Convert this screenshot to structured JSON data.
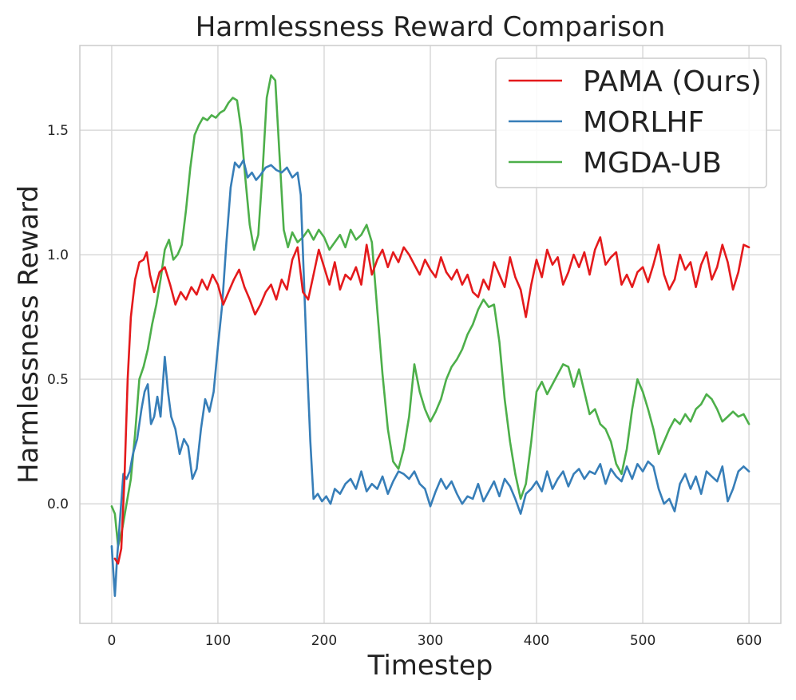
{
  "chart_data": {
    "type": "line",
    "title": "Harmlessness Reward Comparison",
    "xlabel": "Timestep",
    "ylabel": "Harmlessness Reward",
    "xlim": [
      -30,
      630
    ],
    "ylim": [
      -0.48,
      1.84
    ],
    "xticks": [
      0,
      100,
      200,
      300,
      400,
      500,
      600
    ],
    "yticks": [
      0.0,
      0.5,
      1.0,
      1.5
    ],
    "xtick_labels": [
      "0",
      "100",
      "200",
      "300",
      "400",
      "500",
      "600"
    ],
    "ytick_labels": [
      "0.0",
      "0.5",
      "1.0",
      "1.5"
    ],
    "grid": true,
    "legend_position": "top-right",
    "series": [
      {
        "name": "PAMA (Ours)",
        "color": "#e41a1c",
        "x": [
          3,
          6,
          9,
          12,
          15,
          18,
          22,
          26,
          30,
          33,
          36,
          40,
          45,
          50,
          55,
          60,
          65,
          70,
          75,
          80,
          85,
          90,
          95,
          100,
          105,
          110,
          115,
          120,
          125,
          130,
          135,
          140,
          145,
          150,
          155,
          160,
          165,
          170,
          175,
          180,
          185,
          190,
          195,
          200,
          205,
          210,
          215,
          220,
          225,
          230,
          235,
          240,
          245,
          250,
          255,
          260,
          265,
          270,
          275,
          280,
          285,
          290,
          295,
          300,
          305,
          310,
          315,
          320,
          325,
          330,
          335,
          340,
          345,
          350,
          355,
          360,
          365,
          370,
          375,
          380,
          385,
          390,
          395,
          400,
          405,
          410,
          415,
          420,
          425,
          430,
          435,
          440,
          445,
          450,
          455,
          460,
          465,
          470,
          475,
          480,
          485,
          490,
          495,
          500,
          505,
          510,
          515,
          520,
          525,
          530,
          535,
          540,
          545,
          550,
          555,
          560,
          565,
          570,
          575,
          580,
          585,
          590,
          595,
          600
        ],
        "y": [
          -0.22,
          -0.24,
          -0.18,
          0.1,
          0.5,
          0.75,
          0.9,
          0.97,
          0.98,
          1.01,
          0.92,
          0.85,
          0.93,
          0.95,
          0.88,
          0.8,
          0.85,
          0.82,
          0.87,
          0.84,
          0.9,
          0.86,
          0.92,
          0.88,
          0.8,
          0.85,
          0.9,
          0.94,
          0.87,
          0.82,
          0.76,
          0.8,
          0.85,
          0.88,
          0.82,
          0.9,
          0.86,
          0.98,
          1.03,
          0.85,
          0.82,
          0.92,
          1.02,
          0.95,
          0.88,
          0.97,
          0.86,
          0.92,
          0.9,
          0.95,
          0.88,
          1.04,
          0.92,
          0.98,
          1.02,
          0.95,
          1.01,
          0.97,
          1.03,
          1.0,
          0.96,
          0.92,
          0.98,
          0.94,
          0.91,
          0.99,
          0.93,
          0.9,
          0.94,
          0.88,
          0.92,
          0.85,
          0.83,
          0.9,
          0.86,
          0.97,
          0.92,
          0.87,
          0.99,
          0.91,
          0.86,
          0.75,
          0.88,
          0.98,
          0.91,
          1.02,
          0.96,
          0.99,
          0.88,
          0.93,
          1.0,
          0.95,
          1.01,
          0.92,
          1.02,
          1.07,
          0.96,
          0.99,
          1.01,
          0.88,
          0.92,
          0.87,
          0.93,
          0.95,
          0.89,
          0.96,
          1.04,
          0.92,
          0.86,
          0.9,
          1.0,
          0.94,
          0.97,
          0.87,
          0.96,
          1.01,
          0.9,
          0.95,
          1.04,
          0.97,
          0.86,
          0.93,
          1.04,
          1.03
        ]
      },
      {
        "name": "MORLHF",
        "color": "#377eb8",
        "x": [
          0,
          3,
          5,
          8,
          11,
          14,
          17,
          20,
          24,
          28,
          31,
          34,
          37,
          40,
          43,
          46,
          50,
          53,
          56,
          60,
          64,
          68,
          72,
          76,
          80,
          84,
          88,
          92,
          96,
          100,
          104,
          108,
          112,
          116,
          120,
          124,
          128,
          132,
          136,
          140,
          145,
          150,
          155,
          160,
          165,
          170,
          175,
          178,
          181,
          184,
          187,
          190,
          194,
          198,
          202,
          206,
          210,
          215,
          220,
          225,
          230,
          235,
          240,
          245,
          250,
          255,
          260,
          265,
          270,
          275,
          280,
          285,
          290,
          295,
          300,
          305,
          310,
          315,
          320,
          325,
          330,
          335,
          340,
          345,
          350,
          355,
          360,
          365,
          370,
          375,
          380,
          385,
          390,
          395,
          400,
          405,
          410,
          415,
          420,
          425,
          430,
          435,
          440,
          445,
          450,
          455,
          460,
          465,
          470,
          475,
          480,
          485,
          490,
          495,
          500,
          505,
          510,
          515,
          520,
          525,
          530,
          535,
          540,
          545,
          550,
          555,
          560,
          565,
          570,
          575,
          580,
          585,
          590,
          595,
          600
        ],
        "y": [
          -0.17,
          -0.37,
          -0.22,
          -0.05,
          0.12,
          0.1,
          0.13,
          0.2,
          0.26,
          0.38,
          0.45,
          0.48,
          0.32,
          0.35,
          0.43,
          0.35,
          0.59,
          0.45,
          0.35,
          0.3,
          0.2,
          0.26,
          0.23,
          0.1,
          0.14,
          0.3,
          0.42,
          0.37,
          0.45,
          0.63,
          0.8,
          1.05,
          1.27,
          1.37,
          1.35,
          1.38,
          1.31,
          1.33,
          1.3,
          1.32,
          1.35,
          1.36,
          1.34,
          1.33,
          1.35,
          1.31,
          1.33,
          1.24,
          0.9,
          0.55,
          0.25,
          0.02,
          0.04,
          0.01,
          0.03,
          0.0,
          0.06,
          0.04,
          0.08,
          0.1,
          0.06,
          0.13,
          0.05,
          0.08,
          0.06,
          0.11,
          0.04,
          0.09,
          0.13,
          0.12,
          0.1,
          0.13,
          0.08,
          0.06,
          -0.01,
          0.05,
          0.1,
          0.06,
          0.09,
          0.04,
          0.0,
          0.03,
          0.02,
          0.08,
          0.01,
          0.05,
          0.09,
          0.03,
          0.1,
          0.07,
          0.02,
          -0.04,
          0.04,
          0.06,
          0.09,
          0.05,
          0.13,
          0.06,
          0.1,
          0.13,
          0.07,
          0.12,
          0.14,
          0.1,
          0.13,
          0.12,
          0.16,
          0.08,
          0.14,
          0.11,
          0.09,
          0.15,
          0.1,
          0.16,
          0.13,
          0.17,
          0.15,
          0.06,
          0.0,
          0.02,
          -0.03,
          0.08,
          0.12,
          0.06,
          0.11,
          0.04,
          0.13,
          0.11,
          0.09,
          0.15,
          0.01,
          0.06,
          0.13,
          0.15,
          0.13
        ]
      },
      {
        "name": "MGDA-UB",
        "color": "#4daf4a",
        "x": [
          0,
          3,
          6,
          10,
          14,
          18,
          22,
          26,
          30,
          34,
          38,
          42,
          46,
          50,
          54,
          58,
          62,
          66,
          70,
          74,
          78,
          82,
          86,
          90,
          94,
          98,
          102,
          106,
          110,
          114,
          118,
          122,
          126,
          130,
          134,
          138,
          142,
          146,
          150,
          154,
          158,
          162,
          166,
          170,
          175,
          180,
          185,
          190,
          195,
          200,
          205,
          210,
          215,
          220,
          225,
          230,
          235,
          240,
          245,
          250,
          255,
          260,
          265,
          270,
          275,
          280,
          285,
          290,
          295,
          300,
          305,
          310,
          315,
          320,
          325,
          330,
          335,
          340,
          345,
          350,
          355,
          360,
          365,
          370,
          375,
          380,
          385,
          390,
          395,
          400,
          405,
          410,
          415,
          420,
          425,
          430,
          435,
          440,
          445,
          450,
          455,
          460,
          465,
          470,
          475,
          480,
          485,
          490,
          495,
          500,
          505,
          510,
          515,
          520,
          525,
          530,
          535,
          540,
          545,
          550,
          555,
          560,
          565,
          570,
          575,
          580,
          585,
          590,
          595,
          600
        ],
        "y": [
          -0.01,
          -0.04,
          -0.17,
          -0.1,
          0.0,
          0.1,
          0.28,
          0.5,
          0.55,
          0.62,
          0.72,
          0.8,
          0.9,
          1.02,
          1.06,
          0.98,
          1.0,
          1.04,
          1.18,
          1.35,
          1.48,
          1.52,
          1.55,
          1.54,
          1.56,
          1.55,
          1.57,
          1.58,
          1.61,
          1.63,
          1.62,
          1.5,
          1.3,
          1.12,
          1.02,
          1.08,
          1.33,
          1.63,
          1.72,
          1.7,
          1.4,
          1.1,
          1.03,
          1.09,
          1.05,
          1.07,
          1.1,
          1.06,
          1.1,
          1.07,
          1.02,
          1.05,
          1.08,
          1.03,
          1.1,
          1.06,
          1.08,
          1.12,
          1.05,
          0.78,
          0.52,
          0.3,
          0.17,
          0.14,
          0.22,
          0.35,
          0.56,
          0.45,
          0.38,
          0.33,
          0.37,
          0.42,
          0.5,
          0.55,
          0.58,
          0.62,
          0.68,
          0.72,
          0.78,
          0.82,
          0.79,
          0.8,
          0.65,
          0.42,
          0.25,
          0.12,
          0.02,
          0.08,
          0.25,
          0.45,
          0.49,
          0.44,
          0.48,
          0.52,
          0.56,
          0.55,
          0.47,
          0.54,
          0.45,
          0.36,
          0.38,
          0.32,
          0.3,
          0.25,
          0.16,
          0.12,
          0.22,
          0.38,
          0.5,
          0.45,
          0.38,
          0.3,
          0.2,
          0.25,
          0.3,
          0.34,
          0.32,
          0.36,
          0.33,
          0.38,
          0.4,
          0.44,
          0.42,
          0.38,
          0.33,
          0.35,
          0.37,
          0.35,
          0.36,
          0.32
        ]
      }
    ]
  }
}
